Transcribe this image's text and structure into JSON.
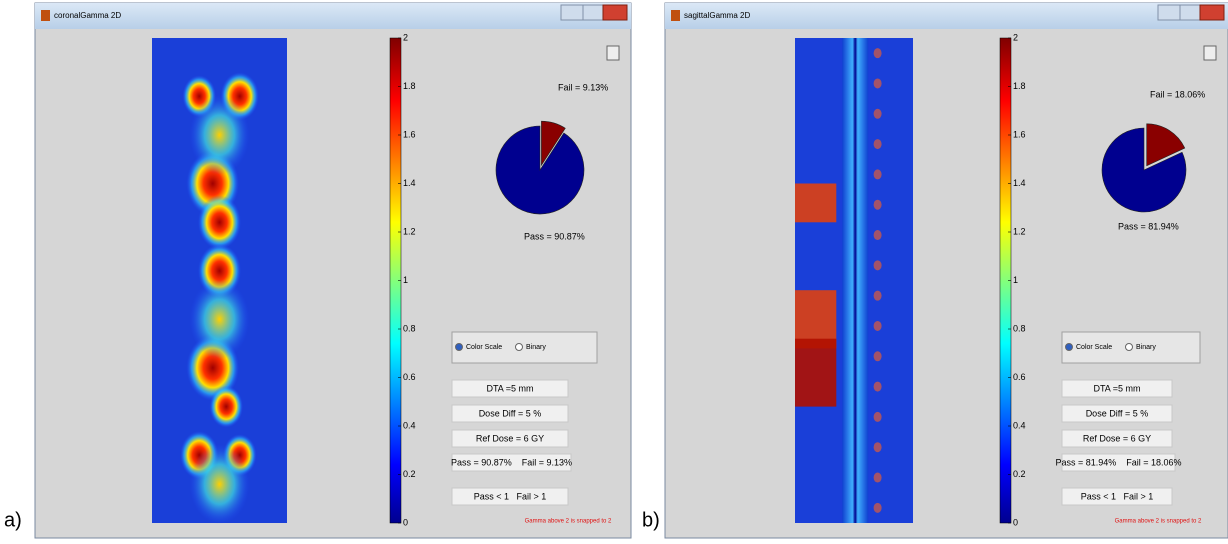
{
  "panels": [
    {
      "label": "a)",
      "window_title": "coronalGamma 2D",
      "colorbar_ticks": [
        0,
        0.2,
        0.4,
        0.6,
        0.8,
        1,
        1.2,
        1.4,
        1.6,
        1.8,
        2
      ],
      "pie": {
        "pass": 90.87,
        "fail": 9.13,
        "pass_label": "Pass = 90.87%",
        "fail_label": "Fail = 9.13%"
      },
      "radio": [
        "Color Scale",
        "Binary"
      ],
      "info": [
        "DTA =5 mm",
        "Dose Diff = 5 %",
        "Ref Dose = 6 GY",
        "Pass = 90.87%    Fail = 9.13%",
        "Pass < 1   Fail > 1"
      ],
      "footnote": "Gamma above 2 is snapped to 2"
    },
    {
      "label": "b)",
      "window_title": "sagittalGamma 2D",
      "colorbar_ticks": [
        0,
        0.2,
        0.4,
        0.6,
        0.8,
        1,
        1.2,
        1.4,
        1.6,
        1.8,
        2
      ],
      "pie": {
        "pass": 81.94,
        "fail": 18.06,
        "pass_label": "Pass = 81.94%",
        "fail_label": "Fail = 18.06%"
      },
      "radio": [
        "Color Scale",
        "Binary"
      ],
      "info": [
        "DTA =5 mm",
        "Dose Diff = 5 %",
        "Ref Dose = 6 GY",
        "Pass = 81.94%    Fail = 18.06%",
        "Pass < 1   Fail > 1"
      ],
      "footnote": "Gamma above 2 is snapped to 2"
    }
  ]
}
